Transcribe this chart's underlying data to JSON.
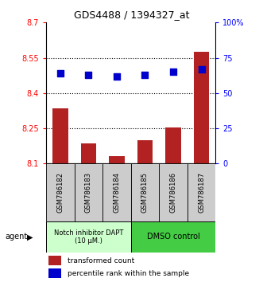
{
  "title": "GDS4488 / 1394327_at",
  "categories": [
    "GSM786182",
    "GSM786183",
    "GSM786184",
    "GSM786185",
    "GSM786186",
    "GSM786187"
  ],
  "bar_values": [
    8.335,
    8.185,
    8.13,
    8.2,
    8.255,
    8.575
  ],
  "percentile_values": [
    64,
    63,
    62,
    63,
    65,
    67
  ],
  "ylim_left": [
    8.1,
    8.7
  ],
  "ylim_right": [
    0,
    100
  ],
  "yticks_left": [
    8.1,
    8.25,
    8.4,
    8.55,
    8.7
  ],
  "yticks_right": [
    0,
    25,
    50,
    75,
    100
  ],
  "ytick_labels_left": [
    "8.1",
    "8.25",
    "8.4",
    "8.55",
    "8.7"
  ],
  "ytick_labels_right": [
    "0",
    "25",
    "50",
    "75",
    "100%"
  ],
  "hlines": [
    8.25,
    8.4,
    8.55
  ],
  "bar_color": "#b22222",
  "dot_color": "#0000cc",
  "group1_label": "Notch inhibitor DAPT\n(10 μM.)",
  "group2_label": "DMSO control",
  "group1_color": "#ccffcc",
  "group2_color": "#44cc44",
  "group1_indices": [
    0,
    1,
    2
  ],
  "group2_indices": [
    3,
    4,
    5
  ],
  "agent_label": "agent",
  "legend_bar_label": "transformed count",
  "legend_dot_label": "percentile rank within the sample",
  "bar_width": 0.55,
  "dot_size": 40,
  "bar_bottom": 8.1
}
